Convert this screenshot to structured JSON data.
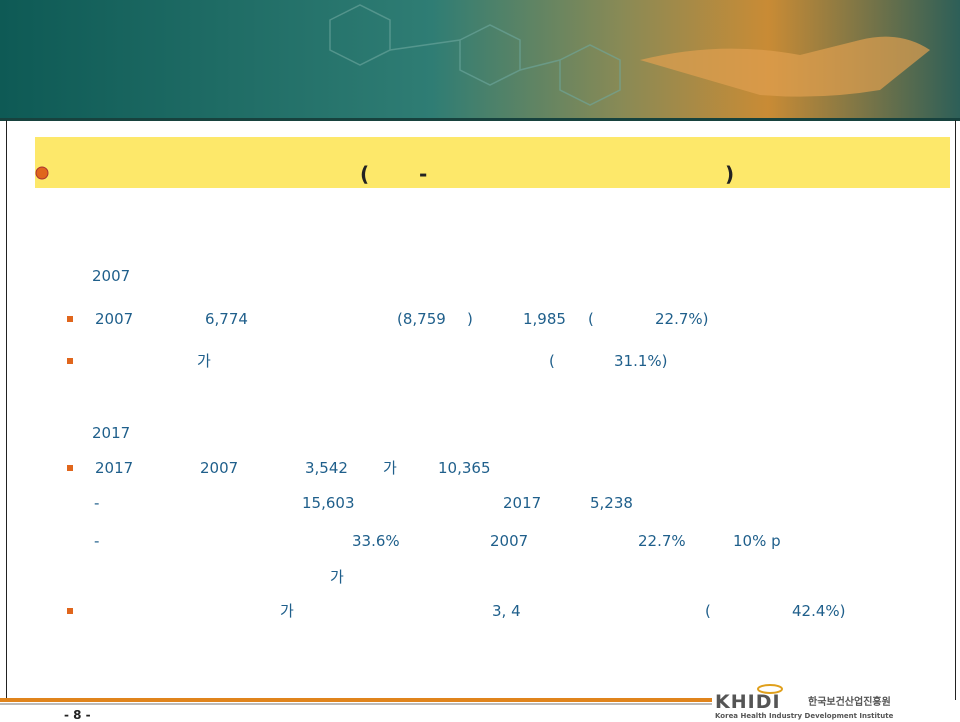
{
  "header": {
    "title_fragments": [
      "(",
      "-",
      ")"
    ]
  },
  "body": {
    "lines": [
      [
        "2007"
      ],
      [
        "2007",
        "6,774",
        "(8,759",
        ")",
        "1,985",
        "(",
        "22.7%)"
      ],
      [
        "가",
        "(",
        "31.1%)"
      ],
      [
        "2017"
      ],
      [
        "2017",
        "2007",
        "3,542",
        "가",
        "10,365"
      ],
      [
        "-",
        "15,603",
        "2017",
        "5,238"
      ],
      [
        "-",
        "33.6%",
        "2007",
        "22.7%",
        "10% p"
      ],
      [
        "가"
      ],
      [
        "가",
        "3, 4",
        "(",
        "42.4%)"
      ]
    ]
  },
  "footer": {
    "page": "- 8 -",
    "logo": "KHIDI",
    "logo_korean": "한국보건산업진흥원",
    "logo_english": "Korea Health Industry Development Institute"
  }
}
